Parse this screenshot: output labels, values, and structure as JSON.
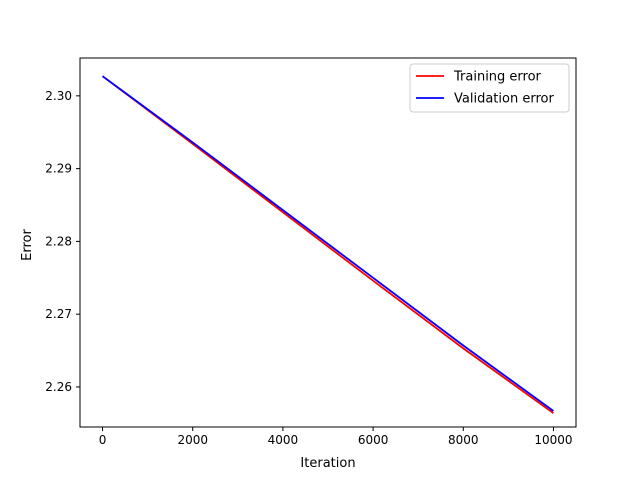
{
  "chart_data": {
    "type": "line",
    "title": "",
    "xlabel": "Iteration",
    "ylabel": "Error",
    "xlim": [
      -500,
      10500
    ],
    "ylim": [
      2.2545,
      2.3052
    ],
    "xticks": [
      0,
      2000,
      4000,
      6000,
      8000,
      10000
    ],
    "xtick_labels": [
      "0",
      "2000",
      "4000",
      "6000",
      "8000",
      "10000"
    ],
    "yticks": [
      2.26,
      2.27,
      2.28,
      2.29,
      2.3
    ],
    "ytick_labels": [
      "2.26",
      "2.27",
      "2.28",
      "2.29",
      "2.30"
    ],
    "grid": false,
    "legend_position": "top-right",
    "series": [
      {
        "name": "Training error",
        "color": "#ff0000",
        "x": [
          0,
          2000,
          4000,
          6000,
          8000,
          10000
        ],
        "y": [
          2.3027,
          2.2934,
          2.284,
          2.2746,
          2.2653,
          2.2564
        ]
      },
      {
        "name": "Validation error",
        "color": "#0000ff",
        "x": [
          0,
          2000,
          4000,
          6000,
          8000,
          10000
        ],
        "y": [
          2.3027,
          2.2936,
          2.2843,
          2.275,
          2.2657,
          2.2567
        ]
      }
    ]
  }
}
